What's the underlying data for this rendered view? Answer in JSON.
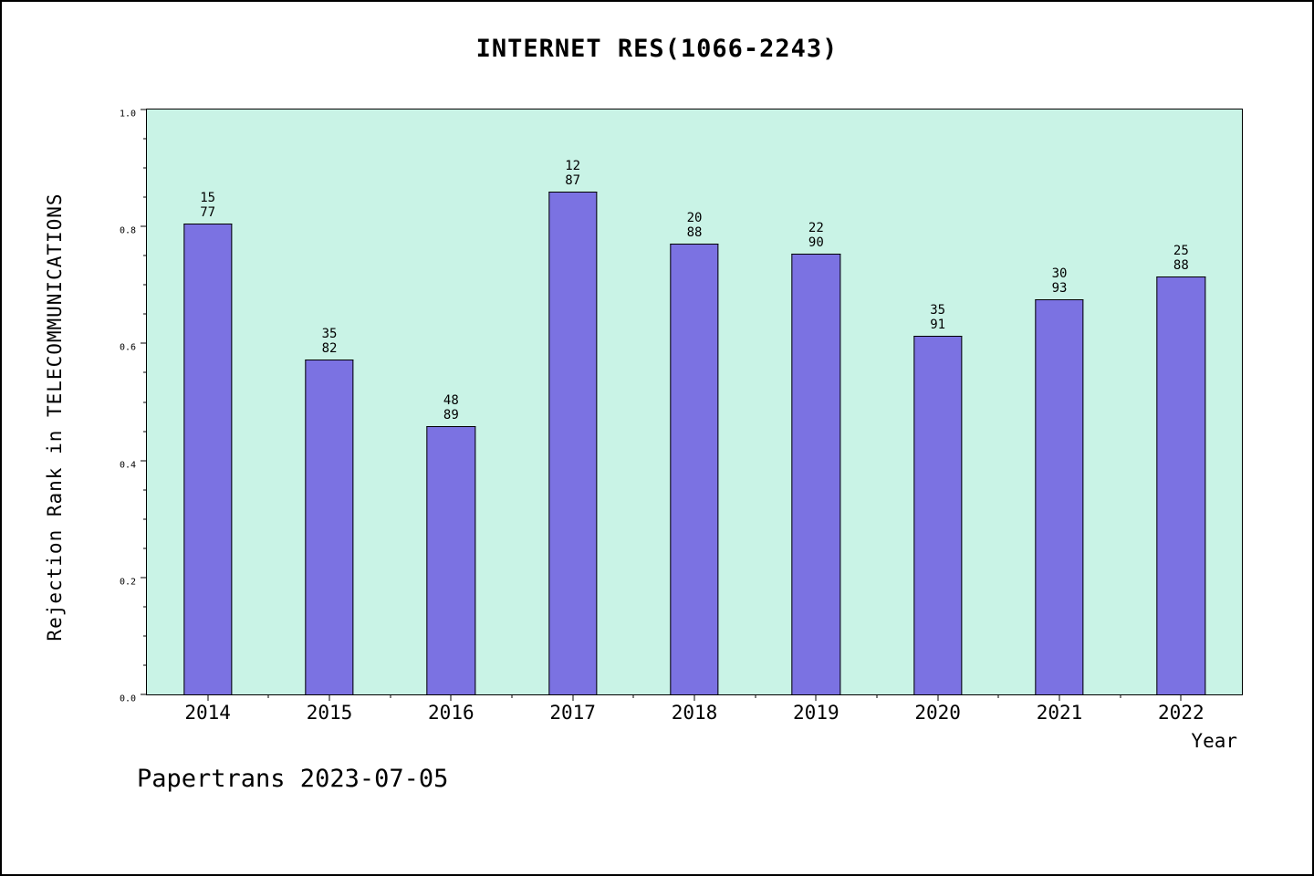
{
  "title": "INTERNET RES(1066-2243)",
  "caption": "Papertrans 2023-07-05",
  "chart_data": {
    "type": "bar",
    "title": "INTERNET RES(1066-2243)",
    "xlabel": "Year",
    "ylabel": "Rejection Rank in TELECOMMUNICATIONS",
    "categories": [
      "2014",
      "2015",
      "2016",
      "2017",
      "2018",
      "2019",
      "2020",
      "2021",
      "2022"
    ],
    "values": [
      0.805,
      0.573,
      0.459,
      0.86,
      0.77,
      0.753,
      0.613,
      0.675,
      0.714
    ],
    "bar_label_top": [
      "15",
      "35",
      "48",
      "12",
      "20",
      "22",
      "35",
      "30",
      "25"
    ],
    "bar_label_bottom": [
      "77",
      "82",
      "89",
      "87",
      "88",
      "90",
      "91",
      "93",
      "88"
    ],
    "ylim": [
      0.0,
      1.0
    ],
    "yticks_major": [
      0.0,
      0.2,
      0.4,
      0.6,
      0.8,
      1.0
    ],
    "ytick_minor_step": 0.05,
    "grid": false,
    "legend": "none",
    "colors": {
      "bar_fill": "#7b72e2",
      "bar_edge": "#000000",
      "plot_background": "#c9f3e6",
      "figure_background": "#ffffff",
      "text": "#000000"
    },
    "bar_width_fraction": 0.4
  }
}
